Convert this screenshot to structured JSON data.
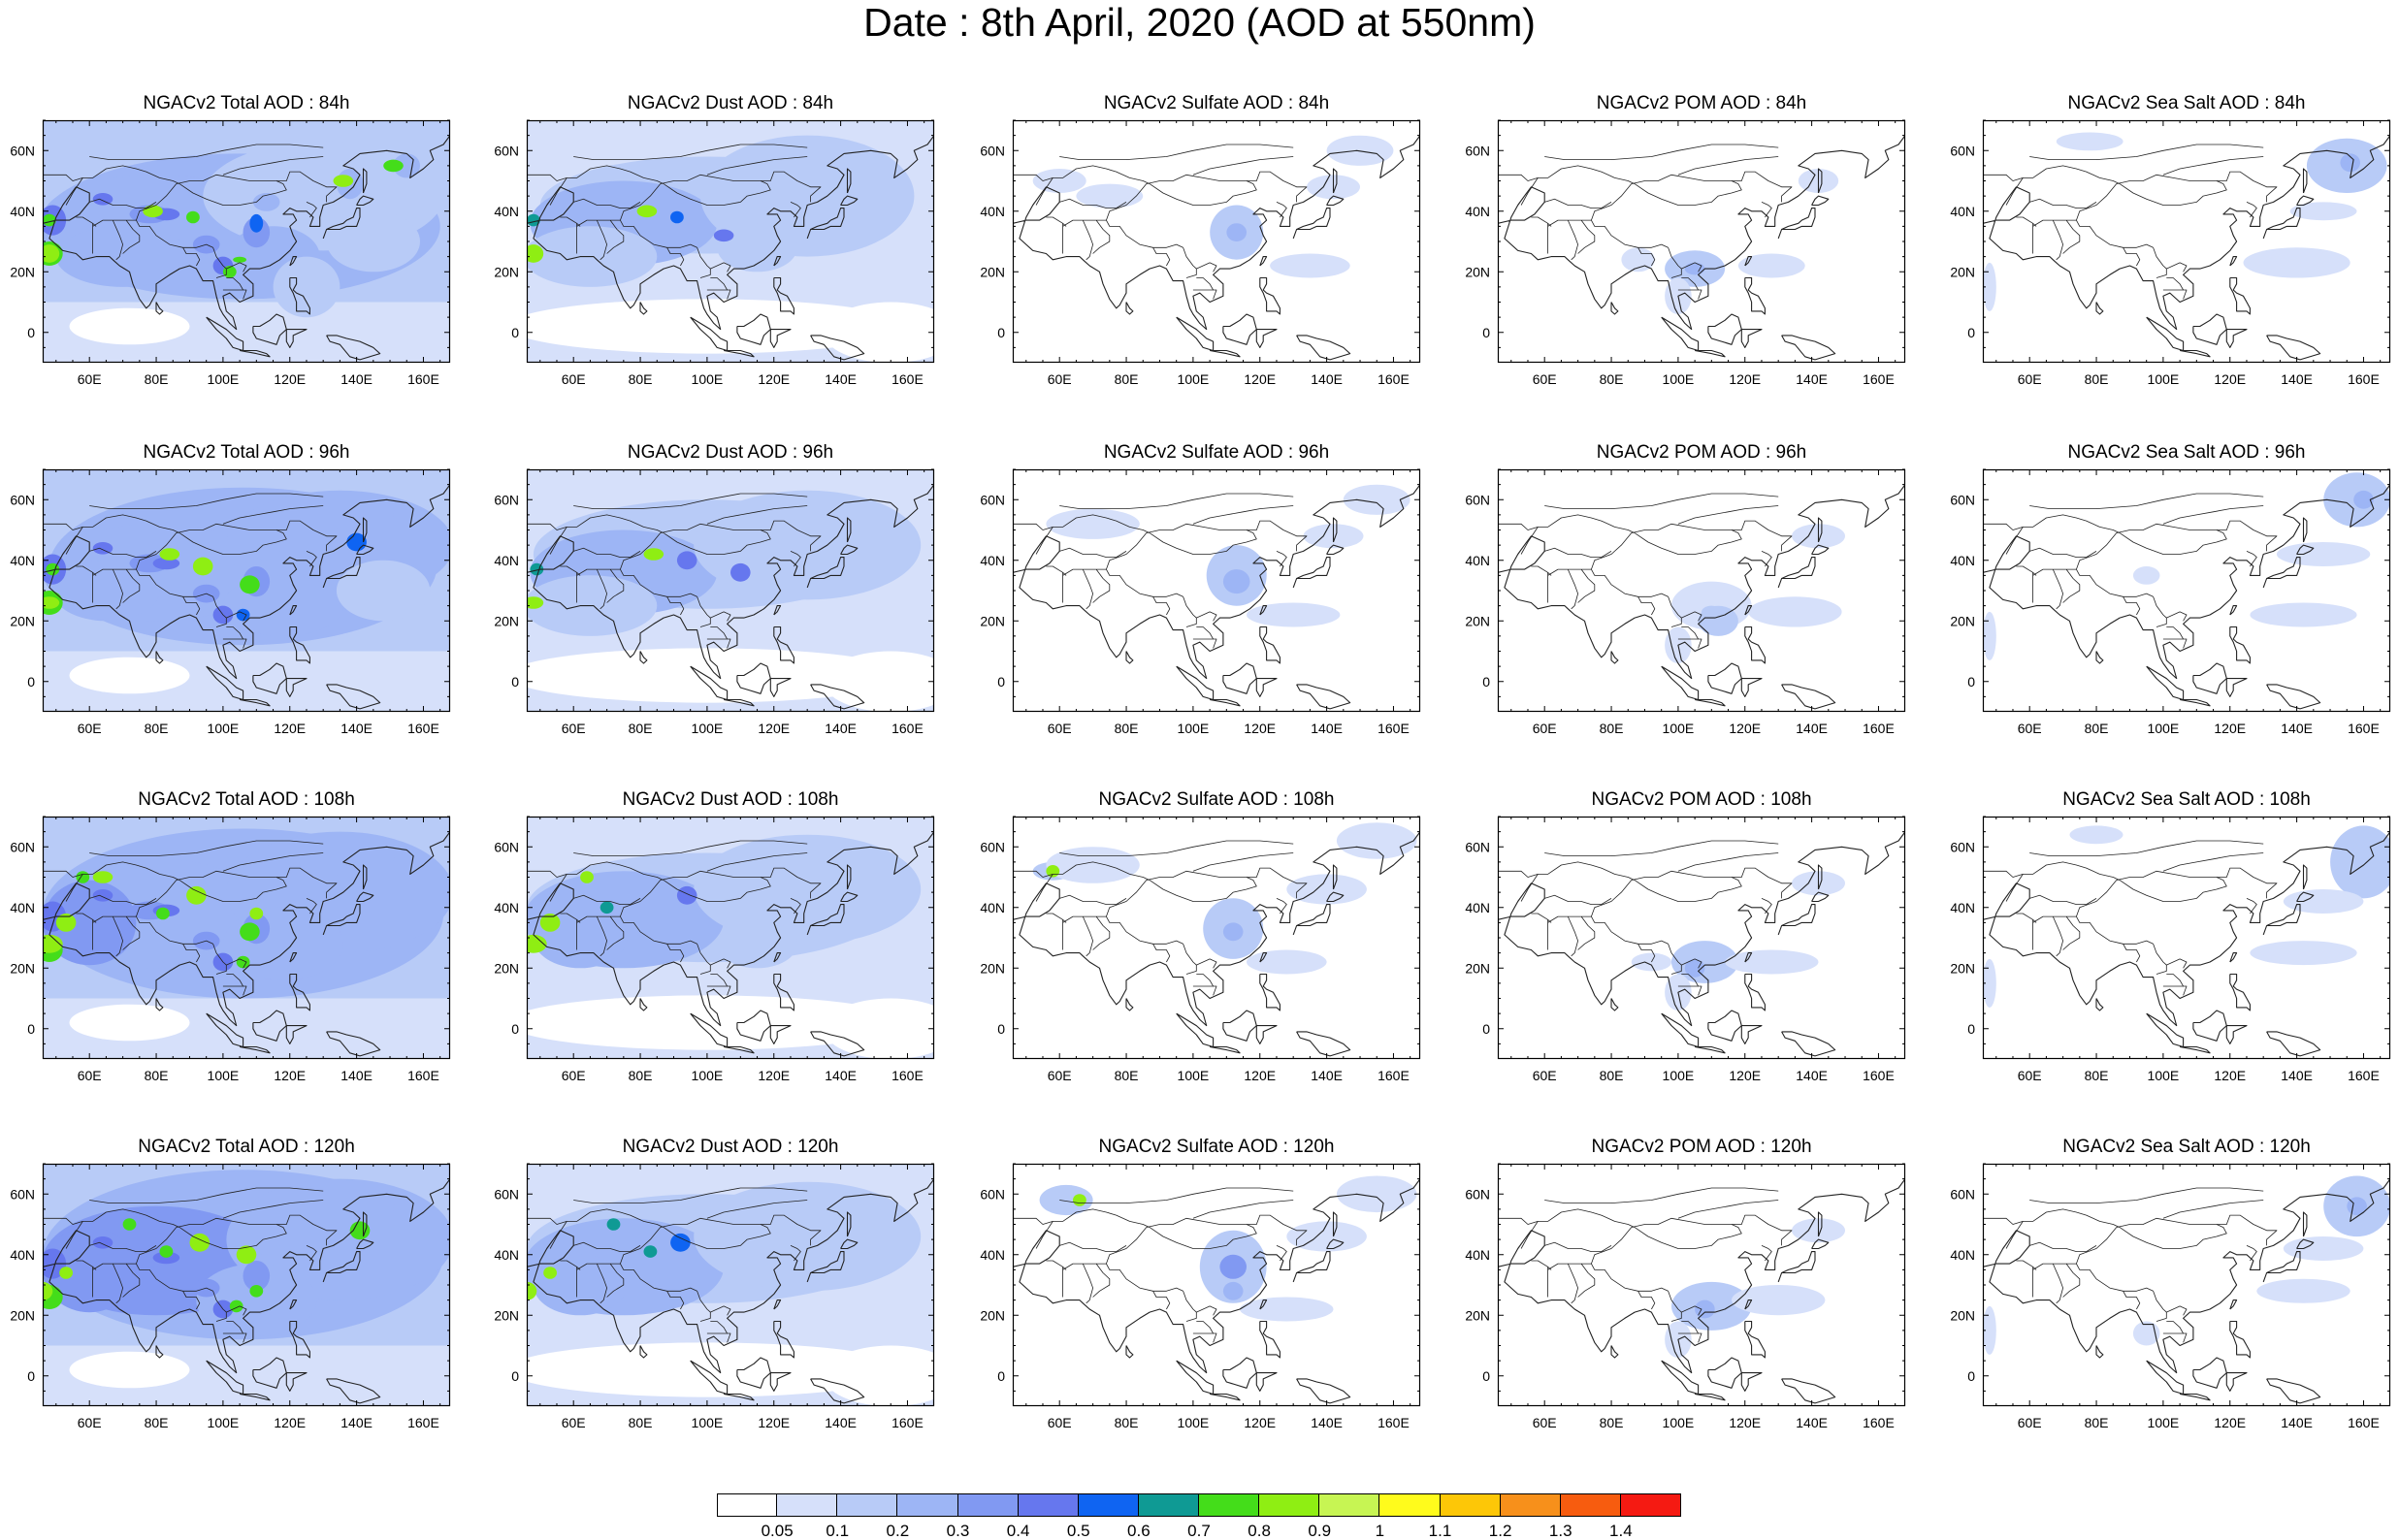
{
  "title": "Date : 8th April, 2020 (AOD at 550nm)",
  "axes": {
    "lon_ticks": [
      "60E",
      "80E",
      "100E",
      "120E",
      "140E",
      "160E"
    ],
    "lat_ticks": [
      "60N",
      "40N",
      "20N",
      "0"
    ],
    "lon_values": [
      60,
      80,
      100,
      120,
      140,
      160
    ],
    "lat_values": [
      60,
      40,
      20,
      0
    ],
    "lon_range": [
      46,
      168
    ],
    "lat_range": [
      -10,
      70
    ]
  },
  "panel_titles": [
    [
      "NGACv2 Total AOD : 84h",
      "NGACv2 Dust AOD : 84h",
      "NGACv2 Sulfate AOD : 84h",
      "NGACv2 POM AOD : 84h",
      "NGACv2 Sea Salt AOD : 84h"
    ],
    [
      "NGACv2 Total AOD : 96h",
      "NGACv2 Dust AOD : 96h",
      "NGACv2 Sulfate AOD : 96h",
      "NGACv2 POM AOD : 96h",
      "NGACv2 Sea Salt AOD : 96h"
    ],
    [
      "NGACv2 Total AOD : 108h",
      "NGACv2 Dust AOD : 108h",
      "NGACv2 Sulfate AOD : 108h",
      "NGACv2 POM AOD : 108h",
      "NGACv2 Sea Salt AOD : 108h"
    ],
    [
      "NGACv2 Total AOD : 120h",
      "NGACv2 Dust AOD : 120h",
      "NGACv2 Sulfate AOD : 120h",
      "NGACv2 POM AOD : 120h",
      "NGACv2 Sea Salt  AOD : 120h"
    ]
  ],
  "colorbar": {
    "labels": [
      "0.05",
      "0.1",
      "0.2",
      "0.3",
      "0.4",
      "0.5",
      "0.6",
      "0.7",
      "0.8",
      "0.9",
      "1",
      "1.1",
      "1.2",
      "1.3",
      "1.4"
    ],
    "colors": [
      "#ffffff",
      "#d6e0fa",
      "#b8cbf7",
      "#9db5f5",
      "#8199f2",
      "#6677ee",
      "#0f64f2",
      "#0f9a94",
      "#44dd1a",
      "#8fee13",
      "#c7f553",
      "#fffb1c",
      "#fdc707",
      "#f7901b",
      "#f75c0f",
      "#f51a12"
    ]
  }
}
